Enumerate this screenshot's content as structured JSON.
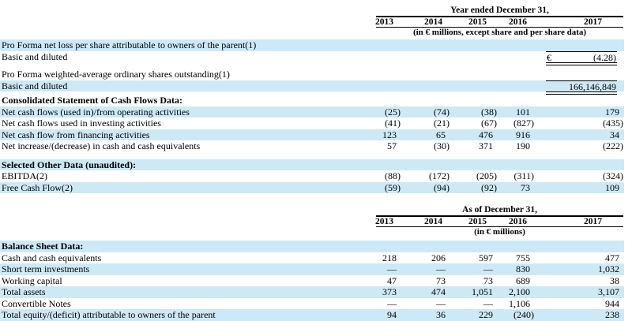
{
  "page": {
    "highlight_color": "#cde9f6",
    "text_color": "#000000",
    "rule_color": "#000000"
  },
  "table1": {
    "title": "Year ended December 31,",
    "years": [
      "2013",
      "2014",
      "2015",
      "2016",
      "2017"
    ],
    "unit_note": "(in € millions, except share and per share data)",
    "rows": [
      {
        "label": "Pro Forma net loss per share attributable to owners of the parent(1)",
        "values": [
          "",
          "",
          "",
          "",
          ""
        ]
      },
      {
        "label": "Basic and diluted",
        "currency": "€",
        "value": "(4.28)"
      },
      {
        "label": "Pro Forma weighted-average ordinary shares outstanding(1)",
        "values": [
          "",
          "",
          "",
          "",
          ""
        ]
      },
      {
        "label": "Basic and diluted",
        "value": "166,146,849"
      },
      {
        "label": "Consolidated Statement of Cash Flows Data:",
        "values": [
          "",
          "",
          "",
          "",
          ""
        ]
      },
      {
        "label": "Net cash flows (used in)/from operating activities",
        "values": [
          "(25)",
          "(74)",
          "(38)",
          "101",
          "179"
        ]
      },
      {
        "label": "Net cash flows used in investing activities",
        "values": [
          "(41)",
          "(21)",
          "(67)",
          "(827)",
          "(435)"
        ]
      },
      {
        "label": "Net cash flow from financing activities",
        "values": [
          "123",
          "65",
          "476",
          "916",
          "34"
        ]
      },
      {
        "label": "Net increase/(decrease) in cash and cash equivalents",
        "values": [
          "57",
          "(30)",
          "371",
          "190",
          "(222)"
        ]
      },
      {
        "label": "Selected Other Data (unaudited):",
        "values": [
          "",
          "",
          "",
          "",
          ""
        ]
      },
      {
        "label": "EBITDA(2)",
        "values": [
          "(88)",
          "(172)",
          "(205)",
          "(311)",
          "(324)"
        ]
      },
      {
        "label": "Free Cash Flow(2)",
        "values": [
          "(59)",
          "(94)",
          "(92)",
          "73",
          "109"
        ]
      }
    ]
  },
  "table2": {
    "title": "As of December 31,",
    "years": [
      "2013",
      "2014",
      "2015",
      "2016",
      "2017"
    ],
    "unit_note": "(in € millions)",
    "rows": [
      {
        "label": "Balance Sheet Data:",
        "values": [
          "",
          "",
          "",
          "",
          ""
        ]
      },
      {
        "label": "Cash and cash equivalents",
        "values": [
          "218",
          "206",
          "597",
          "755",
          "477"
        ]
      },
      {
        "label": "Short term investments",
        "values": [
          "—",
          "—",
          "—",
          "830",
          "1,032"
        ]
      },
      {
        "label": "Working capital",
        "values": [
          "47",
          "73",
          "73",
          "689",
          "38"
        ]
      },
      {
        "label": "Total assets",
        "values": [
          "373",
          "474",
          "1,051",
          "2,100",
          "3,107"
        ]
      },
      {
        "label": "Convertible Notes",
        "values": [
          "—",
          "—",
          "—",
          "1,106",
          "944"
        ]
      },
      {
        "label": "Total equity/(deficit) attributable to owners of the parent",
        "values": [
          "94",
          "36",
          "229",
          "(240)",
          "238"
        ]
      }
    ]
  }
}
